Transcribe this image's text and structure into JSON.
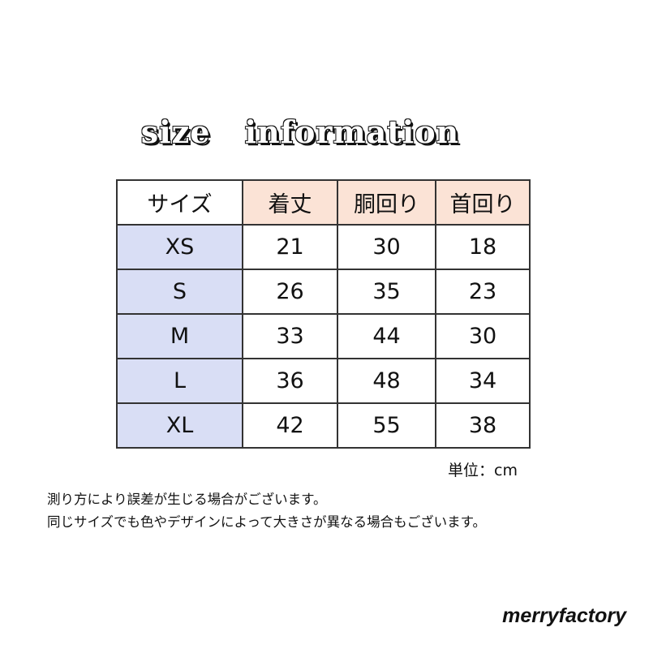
{
  "title": "size   information",
  "table": {
    "headers": [
      "サイズ",
      "着丈",
      "胴回り",
      "首回り"
    ],
    "rows": [
      [
        "XS",
        "21",
        "30",
        "18"
      ],
      [
        "S",
        "26",
        "35",
        "23"
      ],
      [
        "M",
        "33",
        "44",
        "30"
      ],
      [
        "L",
        "36",
        "48",
        "34"
      ],
      [
        "XL",
        "42",
        "55",
        "38"
      ]
    ]
  },
  "unit": "単位：cm",
  "notes": [
    "測り方により誤差が生じる場合がございます。",
    "同じサイズでも色やデザインによって大きさが異なる場合もございます。"
  ],
  "brand": "merryfactory",
  "colors": {
    "header_bg": "#fbe3d6",
    "size_column_bg": "#d9def5"
  }
}
